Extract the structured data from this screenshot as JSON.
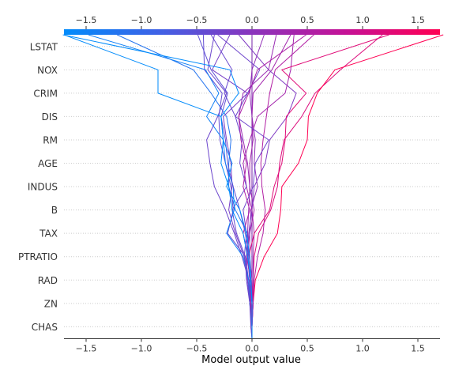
{
  "chart_data": {
    "type": "line",
    "title": "",
    "xlabel": "Model output value",
    "xlim": [
      -1.7,
      1.7
    ],
    "x_ticks": [
      -1.5,
      -1.0,
      -0.5,
      0.0,
      0.5,
      1.0,
      1.5
    ],
    "x_tick_labels": [
      "−1.5",
      "−1.0",
      "−0.5",
      "0.0",
      "0.5",
      "1.0",
      "1.5"
    ],
    "base_value": 0.0,
    "features": [
      "LSTAT",
      "NOX",
      "CRIM",
      "DIS",
      "RM",
      "AGE",
      "INDUS",
      "B",
      "TAX",
      "PTRATIO",
      "RAD",
      "ZN",
      "CHAS"
    ],
    "colormap": [
      "#008bfb",
      "#ff0052"
    ],
    "grid": "dotted horizontal",
    "series": [
      {
        "values": [
          0.0,
          0.0,
          0.0,
          0.0,
          0.0,
          0.0,
          0.0,
          0.0,
          0.0,
          0.0,
          0.0,
          0.0,
          0.0,
          0.0
        ]
      },
      {
        "values": [
          0.0,
          0.0,
          0.0,
          0.01,
          0.02,
          0.06,
          0.17,
          0.23,
          0.25,
          0.29,
          0.45,
          0.57,
          0.8,
          1.18
        ]
      },
      {
        "values": [
          0.0,
          0.0,
          0.0,
          -0.02,
          -0.03,
          -0.04,
          -0.15,
          -0.21,
          -0.21,
          -0.19,
          -0.23,
          -0.37,
          -0.53,
          -1.22
        ]
      },
      {
        "values": [
          0.0,
          -0.01,
          -0.01,
          -0.04,
          -0.05,
          -0.02,
          0.02,
          -0.02,
          -0.02,
          0.01,
          0.0,
          0.01,
          0.18,
          0.35
        ]
      },
      {
        "values": [
          0.0,
          0.0,
          0.01,
          0.02,
          0.05,
          0.1,
          0.12,
          0.09,
          0.08,
          0.1,
          0.13,
          0.16,
          0.21,
          0.56
        ]
      },
      {
        "values": [
          0.0,
          0.0,
          -0.01,
          -0.03,
          -0.09,
          -0.16,
          -0.24,
          -0.34,
          -0.38,
          -0.41,
          -0.31,
          -0.23,
          -0.4,
          -0.34
        ]
      },
      {
        "values": [
          0.0,
          0.0,
          0.0,
          0.0,
          -0.02,
          -0.02,
          -0.01,
          0.05,
          0.02,
          0.03,
          0.0,
          -0.02,
          0.0,
          0.11
        ]
      },
      {
        "values": [
          0.0,
          0.0,
          0.01,
          0.03,
          0.11,
          0.23,
          0.26,
          0.27,
          0.42,
          0.5,
          0.51,
          0.59,
          0.75,
          1.73
        ]
      },
      {
        "values": [
          0.0,
          0.0,
          -0.01,
          -0.02,
          -0.04,
          -0.03,
          0.0,
          0.02,
          0.12,
          0.16,
          0.32,
          0.4,
          0.15,
          -0.12
        ]
      },
      {
        "values": [
          0.0,
          0.0,
          0.01,
          0.01,
          0.01,
          0.02,
          0.0,
          -0.05,
          -0.08,
          -0.02,
          0.05,
          0.3,
          0.35,
          0.38
        ]
      },
      {
        "values": [
          0.0,
          0.0,
          0.01,
          -0.01,
          -0.05,
          -0.04,
          -0.03,
          -0.02,
          -0.04,
          -0.08,
          -0.12,
          -0.08,
          0.15,
          0.22
        ]
      },
      {
        "values": [
          0.0,
          0.0,
          -0.02,
          -0.04,
          -0.07,
          -0.15,
          -0.21,
          -0.18,
          -0.19,
          -0.23,
          -0.26,
          -0.04,
          -0.36,
          -0.2
        ]
      },
      {
        "values": [
          0.0,
          0.0,
          -0.02,
          -0.05,
          -0.06,
          -0.14,
          -0.18,
          -0.05,
          -0.11,
          -0.09,
          -0.15,
          -0.25,
          -0.18,
          -0.37
        ]
      },
      {
        "values": [
          0.0,
          0.0,
          -0.01,
          -0.03,
          -0.06,
          -0.22,
          -0.17,
          -0.19,
          -0.24,
          -0.29,
          -0.3,
          -0.27,
          -0.43,
          -0.44
        ]
      },
      {
        "values": [
          0.0,
          0.0,
          -0.01,
          -0.02,
          -0.03,
          0.02,
          0.16,
          0.2,
          0.27,
          0.3,
          0.31,
          0.49,
          0.27,
          1.24
        ]
      },
      {
        "values": [
          0.0,
          0.0,
          -0.02,
          -0.03,
          -0.08,
          -0.23,
          -0.16,
          -0.17,
          -0.24,
          -0.26,
          -0.41,
          -0.3,
          -0.42,
          -1.48
        ]
      },
      {
        "values": [
          0.0,
          -0.01,
          -0.02,
          -0.04,
          -0.07,
          -0.05,
          -0.08,
          0.01,
          0.03,
          0.15,
          -0.15,
          -0.04,
          0.07,
          -0.31
        ]
      },
      {
        "values": [
          0.0,
          0.0,
          -0.01,
          -0.02,
          -0.04,
          -0.08,
          -0.02,
          -0.08,
          -0.05,
          -0.1,
          -0.12,
          -0.03,
          0.05,
          0.49
        ]
      },
      {
        "values": [
          0.0,
          0.0,
          0.0,
          -0.02,
          -0.03,
          -0.06,
          -0.11,
          -0.17,
          -0.22,
          -0.24,
          -0.28,
          -0.22,
          -0.37,
          -0.49
        ]
      },
      {
        "values": [
          0.0,
          0.0,
          0.0,
          -0.01,
          -0.02,
          -0.05,
          -0.11,
          -0.23,
          -0.18,
          -0.26,
          -0.28,
          -0.12,
          -0.2,
          -1.71
        ]
      },
      {
        "values": [
          0.0,
          0.0,
          0.0,
          -0.01,
          -0.04,
          -0.08,
          -0.18,
          -0.21,
          -0.28,
          -0.26,
          -0.28,
          -0.85,
          -0.85,
          -1.7
        ]
      }
    ]
  }
}
